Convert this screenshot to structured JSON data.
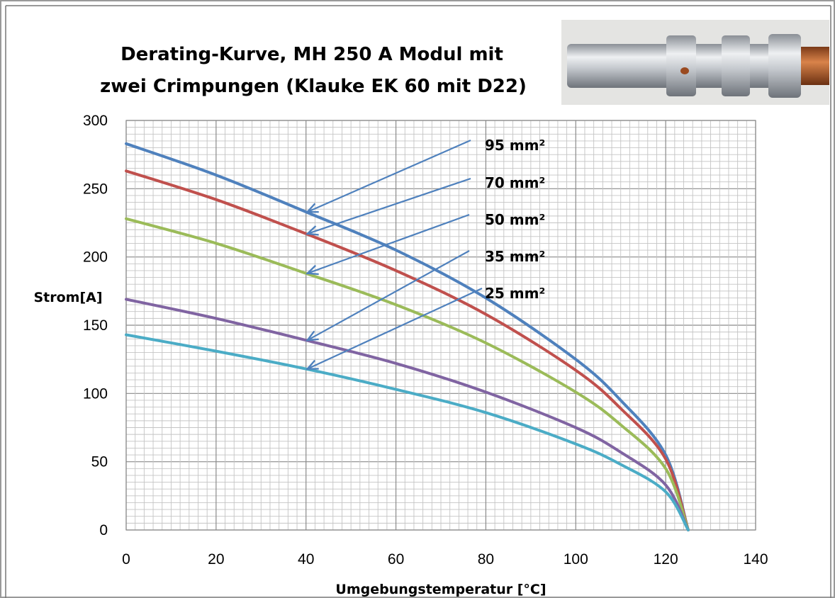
{
  "chart_data": {
    "type": "line",
    "title_lines": [
      "Derating-Kurve, MH 250 A Modul mit",
      "zwei Crimpungen (Klauke EK 60 mit D22)"
    ],
    "xlabel": "Umgebungstemperatur [°C]",
    "ylabel": "Strom[A]",
    "xlim": [
      0,
      140
    ],
    "ylim": [
      0,
      300
    ],
    "xticks": [
      0,
      20,
      40,
      60,
      80,
      100,
      120,
      140
    ],
    "yticks": [
      0,
      50,
      100,
      150,
      200,
      250,
      300
    ],
    "grid": true,
    "series": [
      {
        "name": "95 mm²",
        "color": "#4f81bd",
        "x": [
          0,
          20,
          40,
          60,
          80,
          100,
          110,
          120,
          125
        ],
        "y": [
          283,
          260,
          233,
          205,
          170,
          125,
          95,
          55,
          0
        ]
      },
      {
        "name": "70 mm²",
        "color": "#c0504d",
        "x": [
          0,
          20,
          40,
          60,
          80,
          100,
          110,
          120,
          125
        ],
        "y": [
          263,
          242,
          217,
          190,
          158,
          117,
          89,
          52,
          0
        ]
      },
      {
        "name": "50 mm²",
        "color": "#9bbb59",
        "x": [
          0,
          20,
          40,
          60,
          80,
          100,
          110,
          120,
          125
        ],
        "y": [
          228,
          210,
          188,
          165,
          137,
          101,
          77,
          45,
          0
        ]
      },
      {
        "name": "35 mm²",
        "color": "#8064a2",
        "x": [
          0,
          20,
          40,
          60,
          80,
          100,
          110,
          120,
          125
        ],
        "y": [
          169,
          155,
          139,
          122,
          101,
          75,
          57,
          33,
          0
        ]
      },
      {
        "name": "25 mm²",
        "color": "#4bacc6",
        "x": [
          0,
          20,
          40,
          60,
          80,
          100,
          110,
          120,
          125
        ],
        "y": [
          143,
          131,
          118,
          103,
          86,
          63,
          48,
          28,
          0
        ]
      }
    ],
    "annotations": [
      {
        "label": "95 mm²",
        "point": [
          40,
          233
        ]
      },
      {
        "label": "70 mm²",
        "point": [
          40,
          217
        ]
      },
      {
        "label": "50 mm²",
        "point": [
          40,
          188
        ]
      },
      {
        "label": "35 mm²",
        "point": [
          40,
          139
        ]
      },
      {
        "label": "25 mm²",
        "point": [
          40,
          118
        ]
      }
    ],
    "annotation_color": "#4f81bd"
  },
  "photo": {
    "icon": "crimp-connector-photo",
    "colors": {
      "metal": "#cfd3d8",
      "copper": "#c46a35"
    }
  }
}
